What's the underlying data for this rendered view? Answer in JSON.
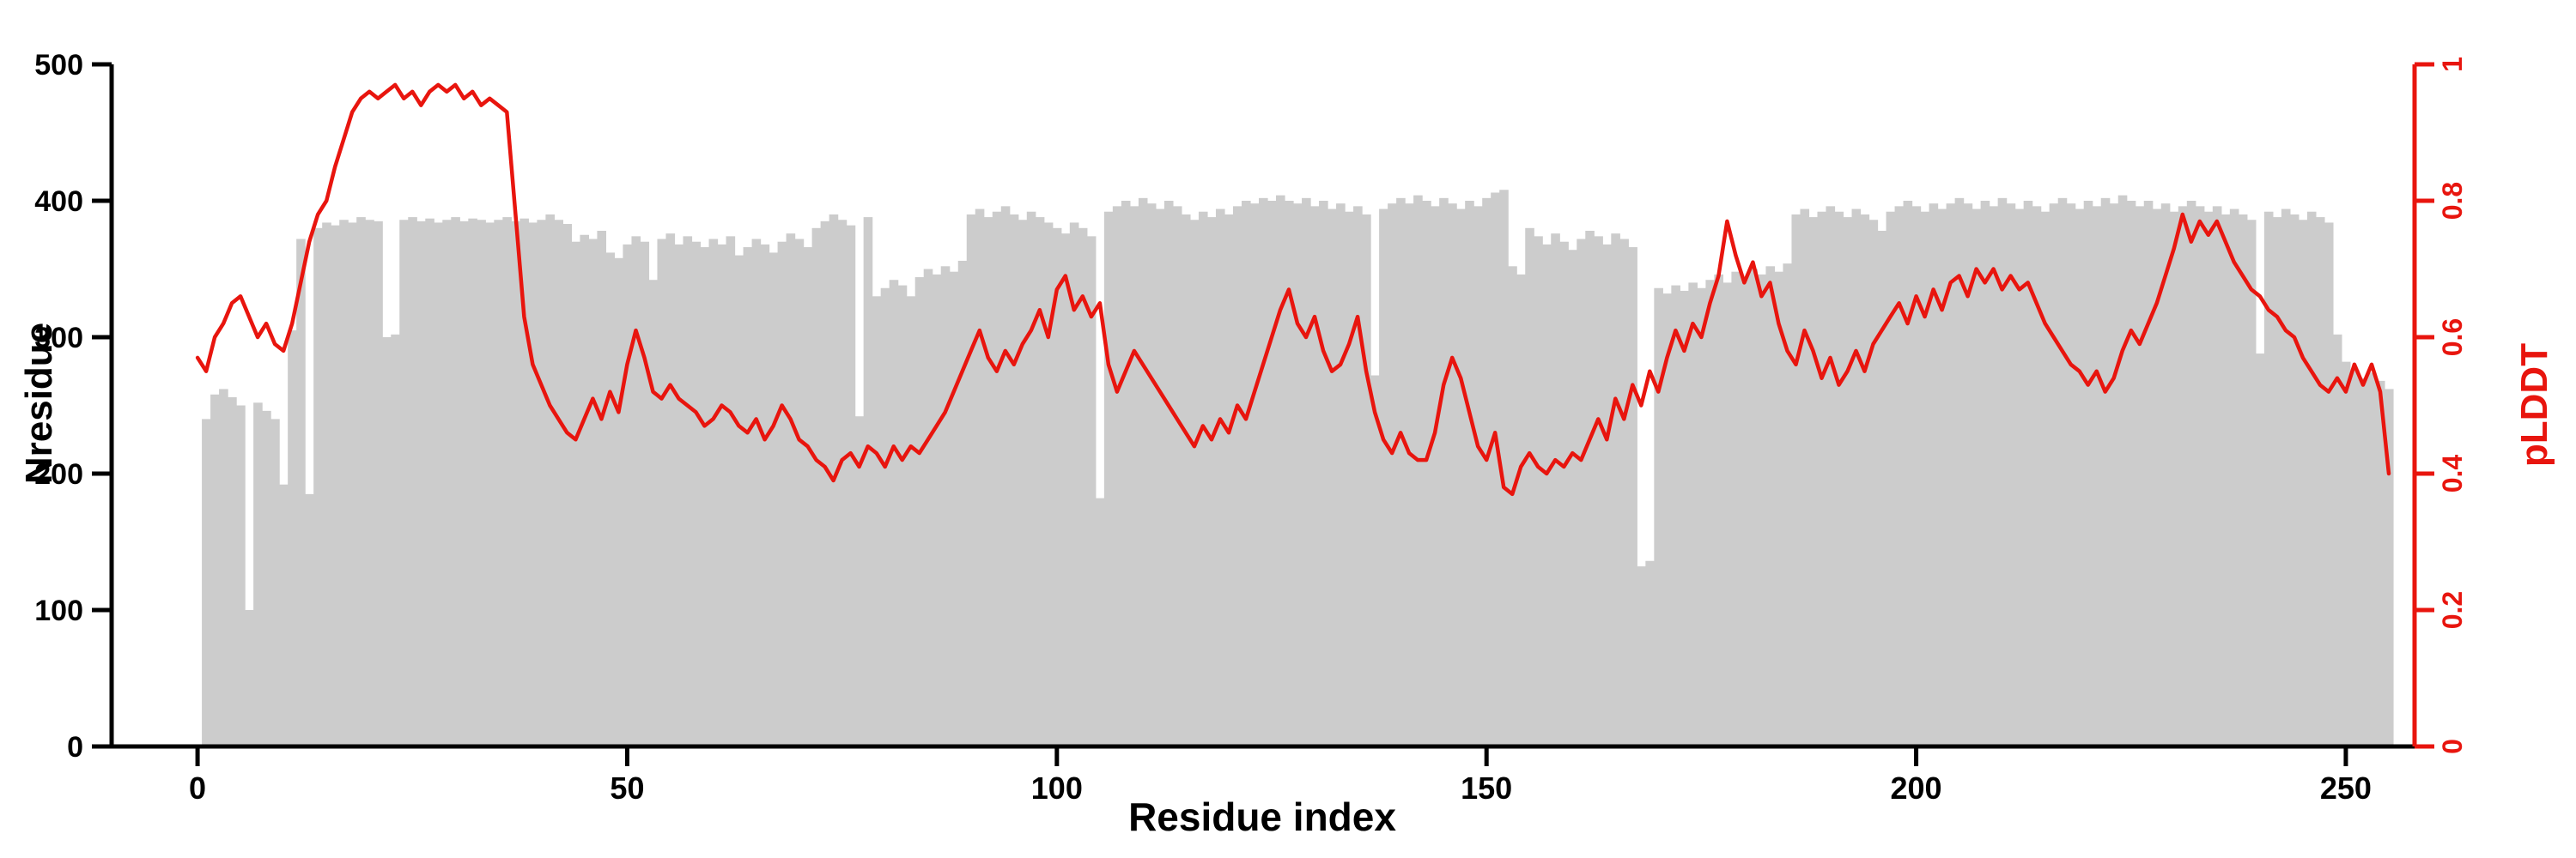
{
  "chart_data": {
    "type": "bar",
    "title": "",
    "xlabel": "Residue index",
    "legend": "none",
    "grid": false,
    "x_axis": {
      "ticks": [
        0,
        50,
        100,
        150,
        200,
        250
      ],
      "tick_labels": [
        "0",
        "50",
        "100",
        "150",
        "200",
        "250"
      ],
      "range": [
        -10,
        258
      ]
    },
    "left_axis": {
      "label": "Nresidue",
      "ticks": [
        0,
        100,
        200,
        300,
        400,
        500
      ],
      "tick_labels": [
        "0",
        "100",
        "200",
        "300",
        "400",
        "500"
      ],
      "range": [
        0,
        500
      ]
    },
    "right_axis": {
      "label": "pLDDT",
      "ticks": [
        0,
        0.2,
        0.4,
        0.6,
        0.8,
        1
      ],
      "tick_labels": [
        "0",
        "0.2",
        "0.4",
        "0.6",
        "0.8",
        "1"
      ],
      "range": [
        0,
        1
      ]
    },
    "series": [
      {
        "name": "Nresidue",
        "type": "bar",
        "axis": "left",
        "x_start": 1,
        "values": [
          240,
          258,
          262,
          256,
          250,
          100,
          252,
          246,
          240,
          192,
          305,
          372,
          185,
          380,
          384,
          382,
          386,
          384,
          388,
          386,
          385,
          300,
          302,
          386,
          388,
          385,
          387,
          384,
          386,
          388,
          385,
          387,
          386,
          384,
          386,
          388,
          385,
          387,
          384,
          386,
          390,
          386,
          383,
          370,
          375,
          372,
          378,
          362,
          358,
          368,
          374,
          370,
          342,
          372,
          376,
          368,
          374,
          370,
          366,
          372,
          368,
          374,
          360,
          366,
          372,
          368,
          362,
          370,
          376,
          372,
          366,
          380,
          385,
          390,
          386,
          382,
          242,
          388,
          330,
          336,
          342,
          338,
          330,
          344,
          350,
          346,
          352,
          348,
          356,
          390,
          394,
          388,
          392,
          396,
          390,
          386,
          392,
          388,
          384,
          380,
          376,
          384,
          380,
          374,
          182,
          392,
          396,
          400,
          396,
          402,
          398,
          394,
          400,
          396,
          390,
          386,
          392,
          388,
          394,
          390,
          396,
          400,
          398,
          402,
          400,
          404,
          400,
          398,
          402,
          396,
          400,
          394,
          398,
          392,
          396,
          390,
          272,
          394,
          398,
          402,
          398,
          404,
          400,
          396,
          402,
          398,
          394,
          400,
          396,
          402,
          406,
          408,
          352,
          346,
          380,
          374,
          368,
          376,
          370,
          364,
          372,
          378,
          374,
          368,
          376,
          372,
          366,
          132,
          136,
          336,
          332,
          338,
          334,
          340,
          336,
          342,
          346,
          340,
          348,
          344,
          350,
          346,
          352,
          348,
          354,
          390,
          394,
          388,
          392,
          396,
          392,
          388,
          394,
          390,
          386,
          378,
          392,
          396,
          400,
          396,
          392,
          398,
          394,
          398,
          402,
          398,
          394,
          400,
          396,
          402,
          398,
          394,
          400,
          396,
          392,
          398,
          402,
          398,
          394,
          400,
          396,
          402,
          398,
          404,
          400,
          396,
          400,
          394,
          398,
          392,
          396,
          400,
          396,
          392,
          396,
          390,
          394,
          390,
          386,
          288,
          392,
          388,
          394,
          390,
          386,
          392,
          388,
          384,
          302,
          282,
          276,
          270,
          274,
          268,
          262
        ]
      },
      {
        "name": "pLDDT",
        "type": "line",
        "axis": "right",
        "x_start": 0,
        "values": [
          0.57,
          0.55,
          0.6,
          0.62,
          0.65,
          0.66,
          0.63,
          0.6,
          0.62,
          0.59,
          0.58,
          0.62,
          0.68,
          0.74,
          0.78,
          0.8,
          0.85,
          0.89,
          0.93,
          0.95,
          0.96,
          0.95,
          0.96,
          0.97,
          0.95,
          0.96,
          0.94,
          0.96,
          0.97,
          0.96,
          0.97,
          0.95,
          0.96,
          0.94,
          0.95,
          0.94,
          0.93,
          0.78,
          0.63,
          0.56,
          0.53,
          0.5,
          0.48,
          0.46,
          0.45,
          0.48,
          0.51,
          0.48,
          0.52,
          0.49,
          0.56,
          0.61,
          0.57,
          0.52,
          0.51,
          0.53,
          0.51,
          0.5,
          0.49,
          0.47,
          0.48,
          0.5,
          0.49,
          0.47,
          0.46,
          0.48,
          0.45,
          0.47,
          0.5,
          0.48,
          0.45,
          0.44,
          0.42,
          0.41,
          0.39,
          0.42,
          0.43,
          0.41,
          0.44,
          0.43,
          0.41,
          0.44,
          0.42,
          0.44,
          0.43,
          0.45,
          0.47,
          0.49,
          0.52,
          0.55,
          0.58,
          0.61,
          0.57,
          0.55,
          0.58,
          0.56,
          0.59,
          0.61,
          0.64,
          0.6,
          0.67,
          0.69,
          0.64,
          0.66,
          0.63,
          0.65,
          0.56,
          0.52,
          0.55,
          0.58,
          0.56,
          0.54,
          0.52,
          0.5,
          0.48,
          0.46,
          0.44,
          0.47,
          0.45,
          0.48,
          0.46,
          0.5,
          0.48,
          0.52,
          0.56,
          0.6,
          0.64,
          0.67,
          0.62,
          0.6,
          0.63,
          0.58,
          0.55,
          0.56,
          0.59,
          0.63,
          0.55,
          0.49,
          0.45,
          0.43,
          0.46,
          0.43,
          0.42,
          0.42,
          0.46,
          0.53,
          0.57,
          0.54,
          0.49,
          0.44,
          0.42,
          0.46,
          0.38,
          0.37,
          0.41,
          0.43,
          0.41,
          0.4,
          0.42,
          0.41,
          0.43,
          0.42,
          0.45,
          0.48,
          0.45,
          0.51,
          0.48,
          0.53,
          0.5,
          0.55,
          0.52,
          0.57,
          0.61,
          0.58,
          0.62,
          0.6,
          0.65,
          0.69,
          0.77,
          0.72,
          0.68,
          0.71,
          0.66,
          0.68,
          0.62,
          0.58,
          0.56,
          0.61,
          0.58,
          0.54,
          0.57,
          0.53,
          0.55,
          0.58,
          0.55,
          0.59,
          0.61,
          0.63,
          0.65,
          0.62,
          0.66,
          0.63,
          0.67,
          0.64,
          0.68,
          0.69,
          0.66,
          0.7,
          0.68,
          0.7,
          0.67,
          0.69,
          0.67,
          0.68,
          0.65,
          0.62,
          0.6,
          0.58,
          0.56,
          0.55,
          0.53,
          0.55,
          0.52,
          0.54,
          0.58,
          0.61,
          0.59,
          0.62,
          0.65,
          0.69,
          0.73,
          0.78,
          0.74,
          0.77,
          0.75,
          0.77,
          0.74,
          0.71,
          0.69,
          0.67,
          0.66,
          0.64,
          0.63,
          0.61,
          0.6,
          0.57,
          0.55,
          0.53,
          0.52,
          0.54,
          0.52,
          0.56,
          0.53,
          0.56,
          0.52,
          0.4
        ]
      }
    ],
    "colors": {
      "bar": "#cccccc",
      "line": "#e8150e",
      "axis": "#000000",
      "background": "#ffffff"
    }
  }
}
